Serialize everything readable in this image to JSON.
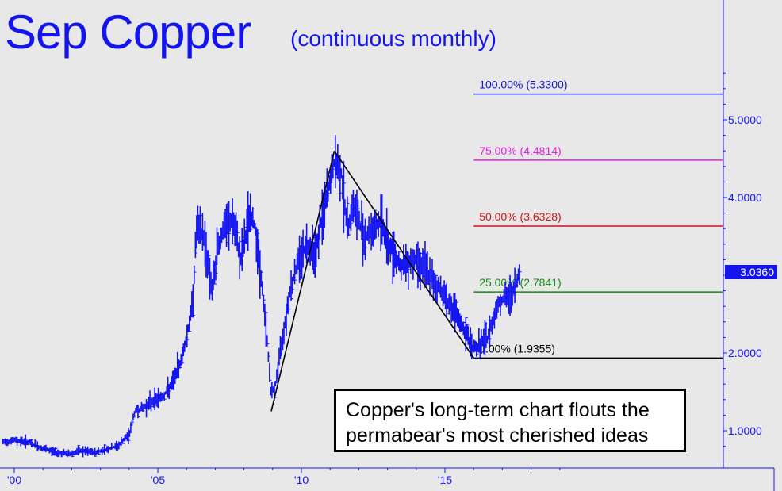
{
  "title": "Sep Copper",
  "subtitle": "(continuous monthly)",
  "note": {
    "line1": "Copper's long-term chart flouts the",
    "line2": "permabear's most cherished ideas"
  },
  "last_price": "3.0360",
  "colors": {
    "background": "#e8e8e8",
    "price_bars": "#1414f0",
    "axis": "#1414f0",
    "fib_100": "#1414c8",
    "fib_75": "#e61ee6",
    "fib_50": "#c81414",
    "fib_25": "#148c14",
    "fib_0": "#000000",
    "swing_lines": "#000000"
  },
  "chart_data": {
    "type": "line",
    "title": "Sep Copper",
    "subtitle": "(continuous monthly)",
    "xlabel": "",
    "ylabel": "",
    "x_ticks": [
      "'00",
      "'05",
      "'10",
      "'15"
    ],
    "x_tick_years": [
      2000,
      2005,
      2010,
      2015
    ],
    "y_ticks": [
      "1.0000",
      "2.0000",
      "3.0000",
      "4.0000",
      "5.0000"
    ],
    "y_tick_values": [
      1.0,
      2.0,
      3.0,
      4.0,
      5.0
    ],
    "xlim": [
      1999.6,
      2019.7
    ],
    "ylim": [
      0.65,
      6.1
    ],
    "last_price": 3.036,
    "series": [
      {
        "name": "",
        "style": "price bars",
        "x": [
          1999.6,
          2000.0,
          2000.5,
          2001.0,
          2001.5,
          2001.9,
          2002.3,
          2002.8,
          2003.2,
          2003.6,
          2004.0,
          2004.2,
          2004.5,
          2004.9,
          2005.2,
          2005.5,
          2005.8,
          2006.0,
          2006.2,
          2006.35,
          2006.6,
          2006.9,
          2007.1,
          2007.3,
          2007.6,
          2007.9,
          2008.2,
          2008.4,
          2008.6,
          2008.8,
          2008.95,
          2009.1,
          2009.3,
          2009.6,
          2009.9,
          2010.2,
          2010.5,
          2010.7,
          2011.0,
          2011.15,
          2011.4,
          2011.6,
          2011.8,
          2012.0,
          2012.2,
          2012.5,
          2012.8,
          2013.0,
          2013.2,
          2013.5,
          2013.8,
          2014.0,
          2014.3,
          2014.6,
          2014.9,
          2015.2,
          2015.5,
          2015.8,
          2016.0,
          2016.2,
          2016.5,
          2016.8,
          2017.0,
          2017.2,
          2017.4,
          2017.6
        ],
        "values": [
          0.85,
          0.88,
          0.85,
          0.77,
          0.72,
          0.7,
          0.74,
          0.72,
          0.76,
          0.8,
          0.95,
          1.25,
          1.3,
          1.4,
          1.45,
          1.6,
          1.9,
          2.2,
          2.6,
          3.6,
          3.5,
          2.8,
          3.4,
          3.6,
          3.7,
          3.2,
          3.8,
          3.6,
          2.95,
          2.2,
          1.45,
          1.6,
          2.1,
          2.8,
          3.2,
          3.4,
          3.3,
          3.7,
          4.2,
          4.45,
          4.3,
          3.6,
          3.9,
          3.7,
          3.5,
          3.6,
          3.7,
          3.4,
          3.3,
          3.1,
          3.2,
          3.2,
          3.1,
          2.9,
          2.8,
          2.6,
          2.4,
          2.2,
          2.05,
          2.1,
          2.2,
          2.6,
          2.7,
          2.7,
          2.8,
          3.036
        ]
      },
      {
        "name": "",
        "style": "swing lines",
        "x": [
          2008.95,
          2011.15,
          2016.0
        ],
        "values": [
          1.25,
          4.6,
          1.9355
        ]
      }
    ],
    "fib_levels": [
      {
        "label": "100.00% (5.3300)",
        "value": 5.33,
        "color_key": "fib_100"
      },
      {
        "label": "75.00% (4.4814)",
        "value": 4.4814,
        "color_key": "fib_75"
      },
      {
        "label": "50.00% (3.6328)",
        "value": 3.6328,
        "color_key": "fib_50"
      },
      {
        "label": "25.00% (2.7841)",
        "value": 2.7841,
        "color_key": "fib_25"
      },
      {
        "label": "0.00% (1.9355)",
        "value": 1.9355,
        "color_key": "fib_0"
      }
    ],
    "fib_start_year": 2016.0,
    "grid": false,
    "legend": "none"
  }
}
